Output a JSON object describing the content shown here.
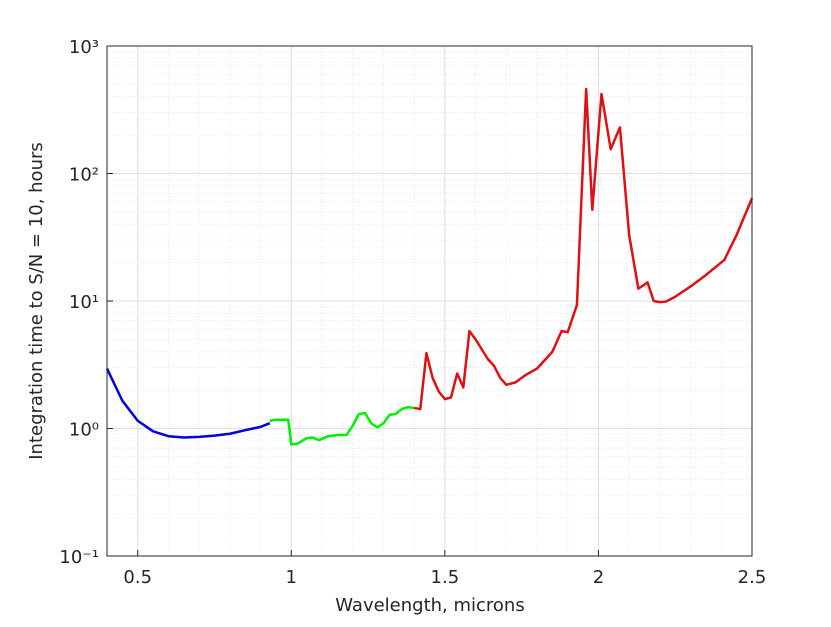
{
  "chart_data": {
    "type": "line",
    "xlabel": "Wavelength, microns",
    "ylabel": "Integration time to S/N = 10, hours",
    "xlim": [
      0.4,
      2.5
    ],
    "xticks": [
      0.5,
      1,
      1.5,
      2,
      2.5
    ],
    "ylim": [
      0.1,
      1000
    ],
    "yscale": "log",
    "yticks": [
      {
        "value": 0.1,
        "label": "10⁻¹"
      },
      {
        "value": 1,
        "label": "10⁰"
      },
      {
        "value": 10,
        "label": "10¹"
      },
      {
        "value": 100,
        "label": "10²"
      },
      {
        "value": 1000,
        "label": "10³"
      }
    ],
    "grid": true,
    "minor_grid": true,
    "series": [
      {
        "color": "#0000dd",
        "x": [
          0.4,
          0.45,
          0.5,
          0.55,
          0.6,
          0.65,
          0.7,
          0.75,
          0.8,
          0.85,
          0.9,
          0.93
        ],
        "values": [
          2.95,
          1.65,
          1.15,
          0.95,
          0.87,
          0.85,
          0.86,
          0.88,
          0.91,
          0.97,
          1.03,
          1.1
        ]
      },
      {
        "color": "#00ee00",
        "x": [
          0.93,
          0.95,
          0.99,
          1.0,
          1.02,
          1.05,
          1.07,
          1.09,
          1.12,
          1.15,
          1.18,
          1.2,
          1.22,
          1.24,
          1.26,
          1.28,
          1.3,
          1.32,
          1.34,
          1.36,
          1.38,
          1.4
        ],
        "values": [
          1.15,
          1.17,
          1.17,
          0.75,
          0.76,
          0.84,
          0.85,
          0.81,
          0.87,
          0.89,
          0.89,
          1.05,
          1.3,
          1.32,
          1.1,
          1.02,
          1.1,
          1.28,
          1.3,
          1.42,
          1.47,
          1.45
        ]
      },
      {
        "color": "#dd1111",
        "x": [
          1.4,
          1.42,
          1.44,
          1.46,
          1.48,
          1.5,
          1.52,
          1.54,
          1.56,
          1.58,
          1.6,
          1.64,
          1.66,
          1.68,
          1.7,
          1.73,
          1.76,
          1.8,
          1.85,
          1.88,
          1.9,
          1.93,
          1.96,
          1.98,
          2.01,
          2.04,
          2.07,
          2.1,
          2.13,
          2.16,
          2.18,
          2.2,
          2.22,
          2.25,
          2.3,
          2.35,
          2.41,
          2.45,
          2.5
        ],
        "values": [
          1.45,
          1.42,
          3.9,
          2.5,
          1.95,
          1.7,
          1.75,
          2.7,
          2.1,
          5.8,
          5.0,
          3.5,
          3.1,
          2.5,
          2.2,
          2.3,
          2.6,
          2.95,
          4.0,
          5.8,
          5.7,
          9.3,
          460,
          52,
          420,
          155,
          230,
          33,
          12.5,
          14,
          10,
          9.8,
          9.9,
          10.8,
          13,
          16,
          21,
          33,
          64
        ]
      }
    ]
  }
}
